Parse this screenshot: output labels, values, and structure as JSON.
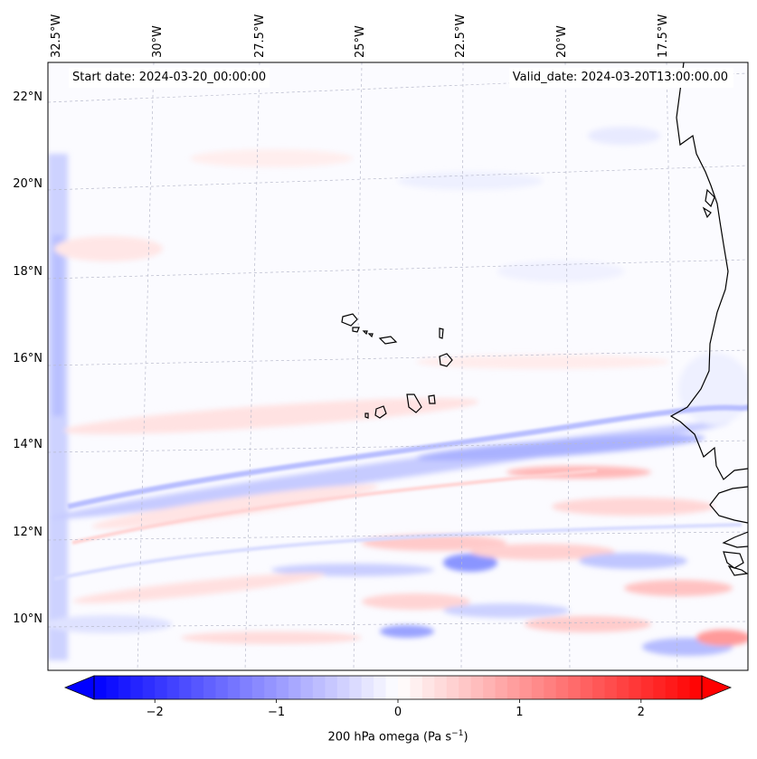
{
  "map": {
    "header_left": "Start date: 2024-03-20_00:00:00",
    "header_right": "Valid_date: 2024-03-20T13:00:00.00",
    "lon_labels": [
      "32.5°W",
      "30°W",
      "27.5°W",
      "25°W",
      "22.5°W",
      "20°W",
      "17.5°W"
    ],
    "lat_labels": [
      "22°N",
      "20°N",
      "18°N",
      "16°N",
      "14°N",
      "12°N",
      "10°N"
    ],
    "field": "200 hPa omega",
    "colormap": "bwr",
    "colors": {
      "negative": "#0000ff",
      "zero": "#ffffff",
      "positive": "#ff0000",
      "coastline": "#000000",
      "gridline": "#b0b0c8"
    }
  },
  "colorbar": {
    "label_text": "200 hPa omega (Pa s",
    "label_exp": "−1",
    "label_close": ")",
    "ticks": [
      "−2",
      "−1",
      "0",
      "1",
      "2"
    ],
    "tick_values": [
      -2,
      -1,
      0,
      1,
      2
    ],
    "range": [
      -2.5,
      2.5
    ],
    "extend": "both"
  }
}
